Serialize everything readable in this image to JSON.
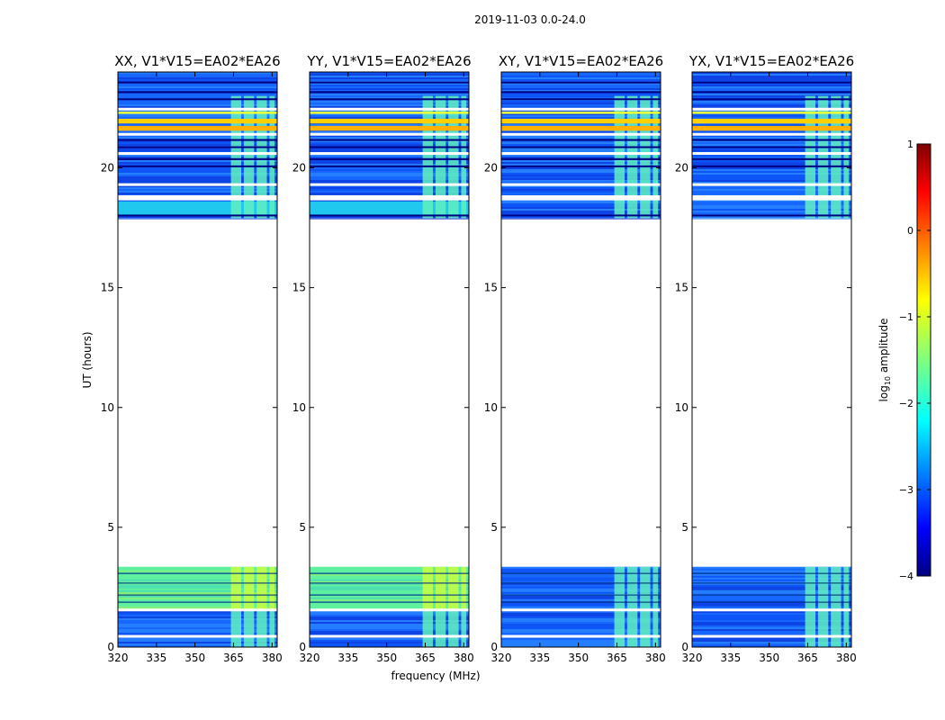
{
  "figure": {
    "suptitle": "2019-11-03 0.0-24.0",
    "ylabel": "UT (hours)",
    "xlabel": "frequency (MHz)"
  },
  "chart_data": {
    "type": "heatmap",
    "x_range": [
      320,
      382
    ],
    "y_range": [
      0,
      24
    ],
    "xticks": [
      320,
      335,
      350,
      365,
      380
    ],
    "yticks": [
      0,
      5,
      10,
      15,
      20
    ],
    "panels": [
      {
        "title": "XX, V1*V15=EA02*EA26"
      },
      {
        "title": "YY, V1*V15=EA02*EA26"
      },
      {
        "title": "XY, V1*V15=EA02*EA26"
      },
      {
        "title": "YX, V1*V15=EA02*EA26"
      }
    ],
    "observed_time_ranges_hours": [
      [
        0.0,
        1.5
      ],
      [
        1.6,
        3.35
      ],
      [
        17.9,
        24.0
      ]
    ],
    "rfi_channels_mhz": [
      [
        364,
        368
      ],
      [
        369,
        373
      ],
      [
        374,
        378
      ],
      [
        379,
        381
      ]
    ],
    "colorbar": {
      "label": "log10 amplitude",
      "label_base": "log",
      "label_sub": "10",
      "label_rest": " amplitude",
      "range": [
        -4,
        1
      ],
      "ticks": [
        1,
        0,
        -1,
        -2,
        -3,
        -4
      ],
      "tick_labels": [
        "1",
        "0",
        "−1",
        "−2",
        "−3",
        "−4"
      ],
      "colormap": "jet"
    }
  }
}
